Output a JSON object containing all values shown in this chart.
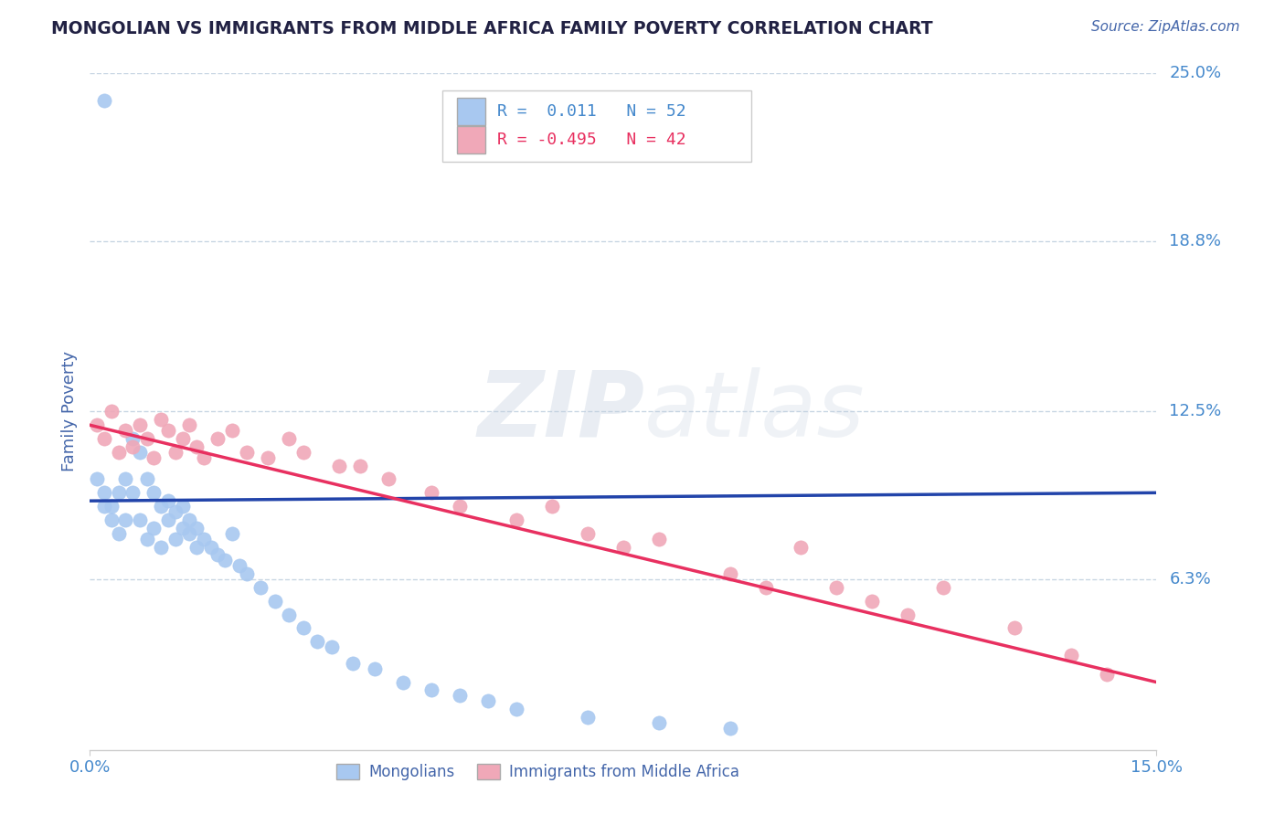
{
  "title": "MONGOLIAN VS IMMIGRANTS FROM MIDDLE AFRICA FAMILY POVERTY CORRELATION CHART",
  "source": "Source: ZipAtlas.com",
  "ylabel": "Family Poverty",
  "xlim": [
    0.0,
    0.15
  ],
  "ylim": [
    0.0,
    0.25
  ],
  "ytick_labels": [
    "25.0%",
    "18.8%",
    "12.5%",
    "6.3%"
  ],
  "ytick_positions": [
    0.25,
    0.188,
    0.125,
    0.063
  ],
  "xtick_labels": [
    "0.0%",
    "15.0%"
  ],
  "xtick_positions": [
    0.0,
    0.15
  ],
  "watermark_zip": "ZIP",
  "watermark_atlas": "atlas",
  "legend_blue_label": "Mongolians",
  "legend_pink_label": "Immigrants from Middle Africa",
  "blue_R": "0.011",
  "blue_N": "52",
  "pink_R": "-0.495",
  "pink_N": "42",
  "blue_color": "#A8C8F0",
  "pink_color": "#F0A8B8",
  "blue_line_color": "#2244AA",
  "pink_line_color": "#E83060",
  "gridline_color": "#BBCCDD",
  "title_color": "#222244",
  "axis_label_color": "#4466AA",
  "tick_label_color": "#4488CC",
  "blue_scatter_x": [
    0.001,
    0.002,
    0.002,
    0.003,
    0.003,
    0.004,
    0.004,
    0.005,
    0.005,
    0.006,
    0.006,
    0.007,
    0.007,
    0.008,
    0.008,
    0.009,
    0.009,
    0.01,
    0.01,
    0.011,
    0.011,
    0.012,
    0.012,
    0.013,
    0.013,
    0.014,
    0.014,
    0.015,
    0.015,
    0.016,
    0.017,
    0.018,
    0.019,
    0.02,
    0.021,
    0.022,
    0.024,
    0.026,
    0.028,
    0.03,
    0.032,
    0.034,
    0.037,
    0.04,
    0.044,
    0.048,
    0.052,
    0.056,
    0.06,
    0.07,
    0.08,
    0.09
  ],
  "blue_scatter_y": [
    0.1,
    0.095,
    0.09,
    0.085,
    0.09,
    0.095,
    0.08,
    0.1,
    0.085,
    0.115,
    0.095,
    0.11,
    0.085,
    0.1,
    0.078,
    0.095,
    0.082,
    0.09,
    0.075,
    0.092,
    0.085,
    0.078,
    0.088,
    0.082,
    0.09,
    0.08,
    0.085,
    0.075,
    0.082,
    0.078,
    0.075,
    0.072,
    0.07,
    0.08,
    0.068,
    0.065,
    0.06,
    0.055,
    0.05,
    0.045,
    0.04,
    0.038,
    0.032,
    0.03,
    0.025,
    0.022,
    0.02,
    0.018,
    0.015,
    0.012,
    0.01,
    0.008
  ],
  "blue_outlier_x": [
    0.002
  ],
  "blue_outlier_y": [
    0.24
  ],
  "pink_scatter_x": [
    0.001,
    0.002,
    0.003,
    0.004,
    0.005,
    0.006,
    0.007,
    0.008,
    0.009,
    0.01,
    0.011,
    0.012,
    0.013,
    0.014,
    0.015,
    0.016,
    0.018,
    0.02,
    0.022,
    0.025,
    0.028,
    0.03,
    0.035,
    0.038,
    0.042,
    0.048,
    0.052,
    0.06,
    0.065,
    0.07,
    0.075,
    0.08,
    0.09,
    0.095,
    0.1,
    0.105,
    0.11,
    0.115,
    0.12,
    0.13,
    0.138,
    0.143
  ],
  "pink_scatter_y": [
    0.12,
    0.115,
    0.125,
    0.11,
    0.118,
    0.112,
    0.12,
    0.115,
    0.108,
    0.122,
    0.118,
    0.11,
    0.115,
    0.12,
    0.112,
    0.108,
    0.115,
    0.118,
    0.11,
    0.108,
    0.115,
    0.11,
    0.105,
    0.105,
    0.1,
    0.095,
    0.09,
    0.085,
    0.09,
    0.08,
    0.075,
    0.078,
    0.065,
    0.06,
    0.075,
    0.06,
    0.055,
    0.05,
    0.06,
    0.045,
    0.035,
    0.028
  ],
  "blue_trend_start_x": 0.0,
  "blue_trend_end_x": 0.15,
  "blue_trend_start_y": 0.092,
  "blue_trend_end_y": 0.095,
  "pink_trend_start_x": 0.0,
  "pink_trend_end_x": 0.15,
  "pink_trend_start_y": 0.12,
  "pink_trend_end_y": 0.025
}
